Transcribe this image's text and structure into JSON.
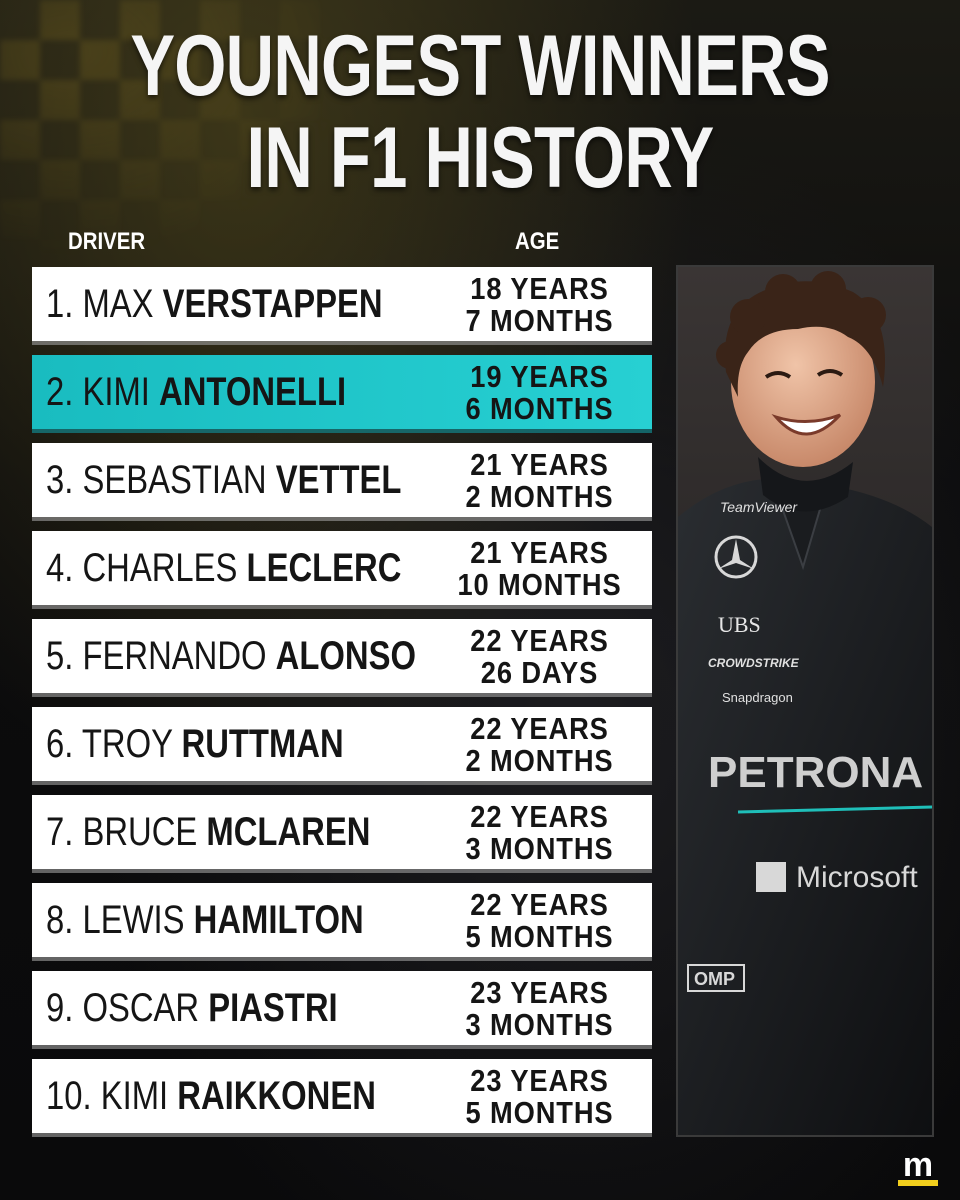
{
  "header": {
    "title_line1": "YOUNGEST WINNERS",
    "title_line2": "IN F1 HISTORY"
  },
  "columns": {
    "driver": "DRIVER",
    "age": "AGE"
  },
  "rows": [
    {
      "rank_first": "1. MAX",
      "last": "VERSTAPPEN",
      "age_line1": "18 YEARS",
      "age_line2": "7 MONTHS"
    },
    {
      "rank_first": "2. KIMI",
      "last": "ANTONELLI",
      "age_line1": "19 YEARS",
      "age_line2": "6 MONTHS"
    },
    {
      "rank_first": "3. SEBASTIAN",
      "last": "VETTEL",
      "age_line1": "21 YEARS",
      "age_line2": "2 MONTHS"
    },
    {
      "rank_first": "4. CHARLES",
      "last": "LECLERC",
      "age_line1": "21 YEARS",
      "age_line2": "10 MONTHS"
    },
    {
      "rank_first": "5. FERNANDO",
      "last": "ALONSO",
      "age_line1": "22 YEARS",
      "age_line2": "26 DAYS"
    },
    {
      "rank_first": "6. TROY",
      "last": "RUTTMAN",
      "age_line1": "22 YEARS",
      "age_line2": "2 MONTHS"
    },
    {
      "rank_first": "7. BRUCE",
      "last": "MCLAREN",
      "age_line1": "22 YEARS",
      "age_line2": "3 MONTHS"
    },
    {
      "rank_first": "8. LEWIS",
      "last": "HAMILTON",
      "age_line1": "22 YEARS",
      "age_line2": "5 MONTHS"
    },
    {
      "rank_first": "9. OSCAR",
      "last": "PIASTRI",
      "age_line1": "23 YEARS",
      "age_line2": "3 MONTHS"
    },
    {
      "rank_first": "10. KIMI",
      "last": "RAIKKONEN",
      "age_line1": "23 YEARS",
      "age_line2": "5 MONTHS"
    }
  ],
  "photo": {
    "sponsors": [
      "TeamViewer",
      "UBS",
      "CROWDSTRIKE",
      "Snapdragon",
      "PETRONA",
      "Microsoft",
      "OMP"
    ]
  },
  "brand": {
    "logo_letter": "m",
    "accent_color": "#f2cf1d"
  },
  "colors": {
    "highlight": "#1fc6c9",
    "row_bg": "#ffffff",
    "title": "#f5f5f5"
  }
}
